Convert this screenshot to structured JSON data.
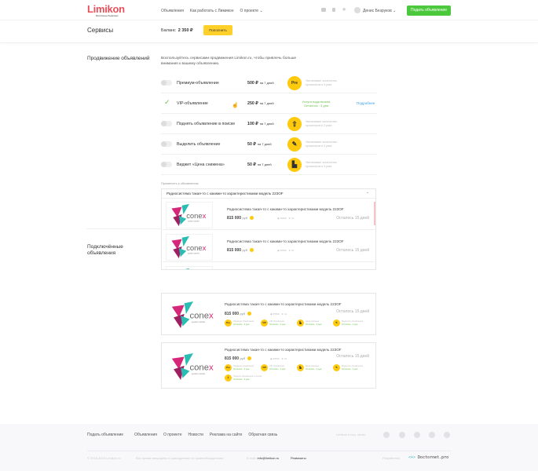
{
  "header": {
    "logo": "Limikon",
    "logo_tagline": "Бесплатные объявления",
    "nav": [
      "Объявления",
      "Как работать с Лимикон",
      "О проекте ⌄"
    ],
    "user_name": "Денис Безруков ⌄",
    "post_button": "Подать объявление"
  },
  "page": {
    "title": "Сервисы",
    "balance_label": "Баланс",
    "balance_value": "2 350 ₽",
    "topup_button": "Пополнить"
  },
  "promotion": {
    "title": "Продвижение объявлений",
    "intro": "Воспользуйтесь сервисами продвижения Limikon.ru, чтобы привлечь больше внимания к вашему объявлению.",
    "services": [
      {
        "name": "Премиум-объявление",
        "price": "500 ₽",
        "period": "на 7 дней",
        "icon": "Pre",
        "desc": "Увеличивает количество просмотров в 3 раза",
        "active": false
      },
      {
        "name": "VIP-объявление",
        "price": "250 ₽",
        "period": "на 7 дней",
        "status": "Услуга подключена",
        "remaining": "Осталось : 3 дня",
        "link": "Подробнее",
        "active": true
      },
      {
        "name": "Поднять объявление в поиске",
        "price": "100 ₽",
        "period": "на 7 дней",
        "icon": "⇧",
        "desc": "Увеличивает количество просмотров в 3 раза",
        "active": false
      },
      {
        "name": "Выделить объявление",
        "price": "50 ₽",
        "period": "на 7 дней",
        "icon": "✎",
        "desc": "Увеличивает количество просмотров в 3 раза",
        "active": false
      },
      {
        "name": "Виджет «Цена снижена»",
        "price": "50 ₽",
        "period": "на 7 дней",
        "icon": "▙",
        "desc": "Увеличивает количество просмотров в 3 раза",
        "active": false
      }
    ],
    "apply_label": "Применить к объявлению",
    "selected_ad": "Радиосистема такая-то с  какими-то характеристиками модель 223OF",
    "ads": [
      {
        "title": "Радиосистема такая-то с  какими-то характеристиками модель 223OF",
        "price": "815 000",
        "currency": "руб",
        "views": "65536",
        "favs": "41",
        "left": "Осталось 15 дней"
      },
      {
        "title": "Радиосистема такая-то с  какими-то характеристиками модель 223OF",
        "price": "815 000",
        "currency": "руб",
        "views": "65536",
        "favs": "41",
        "left": "Осталось 15 дней"
      }
    ]
  },
  "connected": {
    "title": "Подключённые объявления",
    "cards": [
      {
        "title": "Радиосистема такая-то с  какими-то характеристиками модель 223OF",
        "price": "815 000",
        "currency": "руб",
        "views": "65536",
        "favs": "41",
        "left": "Осталось 15 дней",
        "badges": [
          {
            "icon": "Pre",
            "name": "Премиум объявление",
            "left": "Осталось : 3 дня"
          },
          {
            "icon": "VIP",
            "name": "VIP объявление",
            "left": "Осталось : 3 дня"
          },
          {
            "icon": "▙",
            "name": "Цена снижена",
            "left": "Осталось : 3 дня"
          },
          {
            "icon": "✎",
            "name": "Выделить объявление",
            "left": "Осталось : 3 дня"
          }
        ]
      },
      {
        "title": "Радиосистема такая-то с  какими-то характеристиками модель 223OF",
        "price": "815 000",
        "currency": "руб",
        "views": "65536",
        "favs": "41",
        "left": "Осталось 15 дней",
        "badges": [
          {
            "icon": "Pre",
            "name": "Премиум объявление",
            "left": "Осталось : 3 дня"
          },
          {
            "icon": "VIP",
            "name": "VIP объявление",
            "left": "Осталось : 3 дня"
          },
          {
            "icon": "▙",
            "name": "Цена снижена",
            "left": "Осталось : 3 дня"
          },
          {
            "icon": "✎",
            "name": "Выделить объявление",
            "left": "Осталось : 3 дня"
          },
          {
            "icon": "⇧",
            "name": "Поднять объявление в поиске",
            "left": "Осталось : 3 дня"
          }
        ]
      }
    ]
  },
  "logo_brand": {
    "word": "conex",
    "tagline": "system center"
  },
  "footer": {
    "links": [
      "Подать объявление",
      "Объявления",
      "О проекте",
      "Новости",
      "Реклама на сайте",
      "Обратная связь"
    ],
    "share": "Limikon в соц. сетях:",
    "copyright": "© 2015-2016 Limikon.ru",
    "rights": "Все права защищены и принадлежат их правообладателям",
    "email_label": "E-mail:",
    "email": "info@limikon.ru",
    "requisites": "Реквизиты",
    "dev_label": "Разработка:",
    "dev_name": "Doctornet.pro",
    "dev_mark": "<+>"
  },
  "colors": {
    "brand": "#e8505b",
    "green": "#4cc83d",
    "yellow": "#ffc90e",
    "link": "#3b9ee4"
  }
}
